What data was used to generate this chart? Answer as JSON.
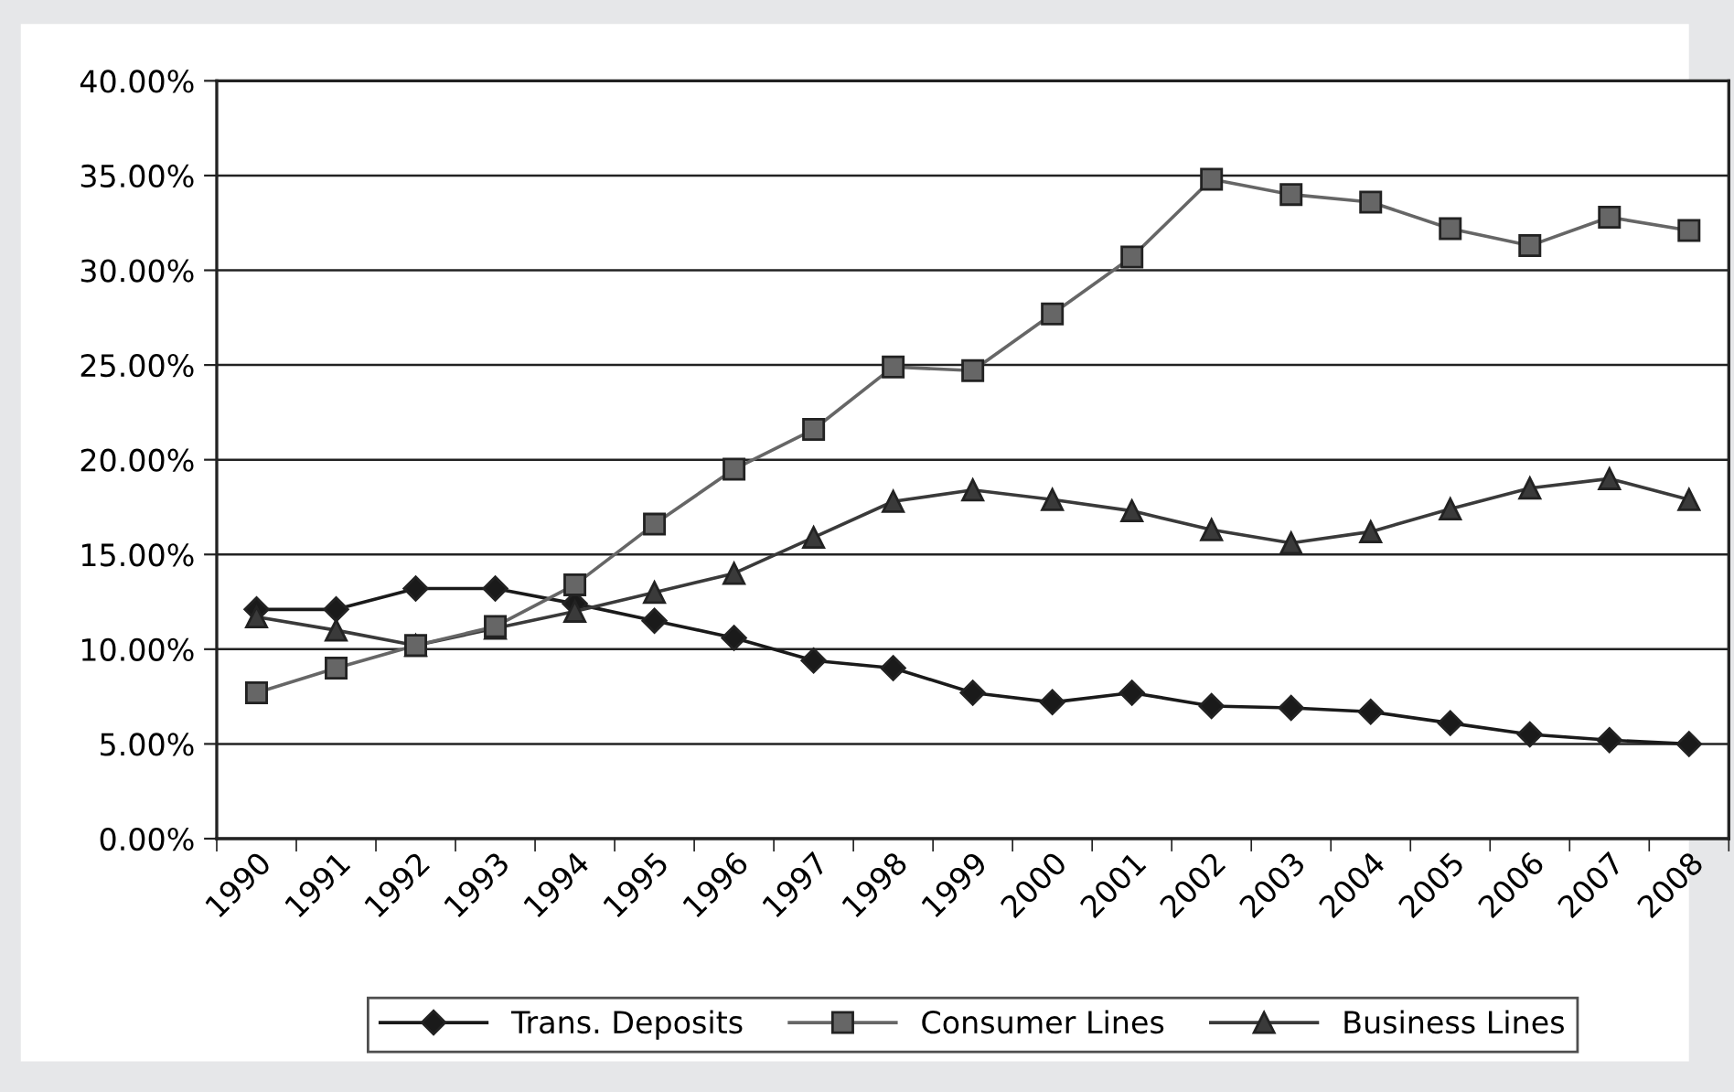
{
  "chart_data": {
    "type": "line",
    "categories": [
      "1990",
      "1991",
      "1992",
      "1993",
      "1994",
      "1995",
      "1996",
      "1997",
      "1998",
      "1999",
      "2000",
      "2001",
      "2002",
      "2003",
      "2004",
      "2005",
      "2006",
      "2007",
      "2008"
    ],
    "series": [
      {
        "name": "Trans. Deposits",
        "color": "#1a1a1a",
        "marker": "diamond",
        "values": [
          12.1,
          12.1,
          13.2,
          13.2,
          12.4,
          11.5,
          10.6,
          9.4,
          9.0,
          7.7,
          7.2,
          7.7,
          7.0,
          6.9,
          6.7,
          6.1,
          5.5,
          5.2,
          5.0
        ]
      },
      {
        "name": "Consumer Lines",
        "color": "#666666",
        "marker": "square",
        "values": [
          7.7,
          9.0,
          10.2,
          11.2,
          13.4,
          16.6,
          19.5,
          21.6,
          24.9,
          24.7,
          27.7,
          30.7,
          34.8,
          34.0,
          33.6,
          32.2,
          31.3,
          32.8,
          32.1
        ]
      },
      {
        "name": "Business Lines",
        "color": "#3a3a3a",
        "marker": "triangle",
        "values": [
          11.7,
          11.0,
          10.2,
          11.1,
          12.0,
          13.0,
          14.0,
          15.9,
          17.8,
          18.4,
          17.9,
          17.3,
          16.3,
          15.6,
          16.2,
          17.4,
          18.5,
          19.0,
          17.9
        ]
      }
    ],
    "ylim": [
      0,
      40
    ],
    "yticks": [
      {
        "value": 0,
        "label": "0.00%"
      },
      {
        "value": 5,
        "label": "5.00%"
      },
      {
        "value": 10,
        "label": "10.00%"
      },
      {
        "value": 15,
        "label": "15.00%"
      },
      {
        "value": 20,
        "label": "20.00%"
      },
      {
        "value": 25,
        "label": "25.00%"
      },
      {
        "value": 30,
        "label": "30.00%"
      },
      {
        "value": 35,
        "label": "35.00%"
      },
      {
        "value": 40,
        "label": "40.00%"
      }
    ],
    "grid": "y",
    "legend": "bottom",
    "line_style": "solid"
  }
}
